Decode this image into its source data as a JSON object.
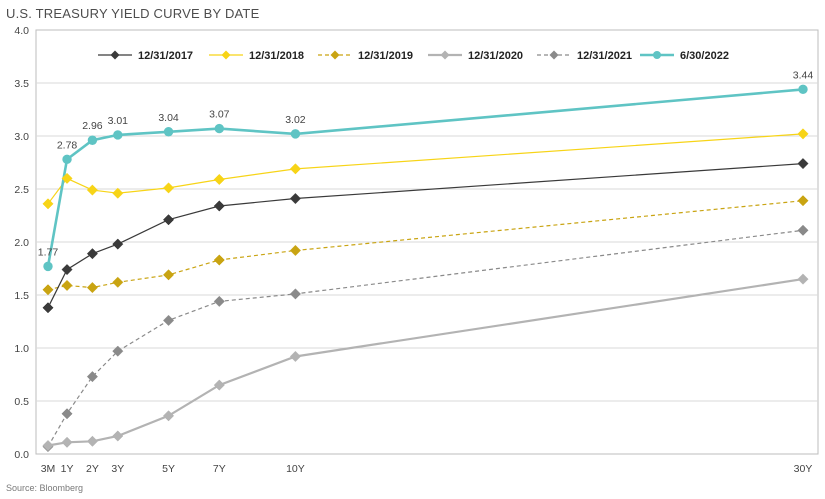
{
  "title": "U.S. TREASURY YIELD CURVE BY DATE",
  "source": "Source: Bloomberg",
  "chart_data": {
    "type": "line",
    "title": "U.S. TREASURY YIELD CURVE BY DATE",
    "xlabel": "",
    "ylabel": "",
    "x": [
      0.25,
      1,
      2,
      3,
      5,
      7,
      10,
      30
    ],
    "x_tick_labels": [
      "3M",
      "1Y",
      "2Y",
      "3Y",
      "5Y",
      "7Y",
      "10Y",
      "30Y"
    ],
    "ylim": [
      0,
      4.0
    ],
    "y_ticks": [
      "0.0",
      "0.5",
      "1.0",
      "1.5",
      "2.0",
      "2.5",
      "3.0",
      "3.5",
      "4.0"
    ],
    "grid": "horizontal",
    "legend_position": "top",
    "series": [
      {
        "name": "12/31/2017",
        "color": "#3a3a3a",
        "dashed": false,
        "marker": "diamond",
        "values": [
          1.38,
          1.74,
          1.89,
          1.98,
          2.21,
          2.34,
          2.41,
          2.74
        ]
      },
      {
        "name": "12/31/2018",
        "color": "#f7d417",
        "dashed": false,
        "marker": "diamond",
        "values": [
          2.36,
          2.6,
          2.49,
          2.46,
          2.51,
          2.59,
          2.69,
          3.02
        ]
      },
      {
        "name": "12/31/2019",
        "color": "#c9a412",
        "dashed": true,
        "marker": "diamond",
        "values": [
          1.55,
          1.59,
          1.57,
          1.62,
          1.69,
          1.83,
          1.92,
          2.39
        ]
      },
      {
        "name": "12/31/2020",
        "color": "#b3b3b3",
        "dashed": false,
        "marker": "diamond",
        "values": [
          0.08,
          0.11,
          0.12,
          0.17,
          0.36,
          0.65,
          0.92,
          1.65
        ]
      },
      {
        "name": "12/31/2021",
        "color": "#8a8a8a",
        "dashed": true,
        "marker": "diamond",
        "values": [
          0.07,
          0.38,
          0.73,
          0.97,
          1.26,
          1.44,
          1.51,
          2.11
        ]
      },
      {
        "name": "6/30/2022",
        "color": "#5fc4c4",
        "dashed": false,
        "marker": "circle",
        "values": [
          1.77,
          2.78,
          2.96,
          3.01,
          3.04,
          3.07,
          3.02,
          3.44
        ],
        "data_labels": [
          "1.77",
          "2.78",
          "2.96",
          "3.01",
          "3.04",
          "3.07",
          "3.02",
          "3.44"
        ]
      }
    ]
  }
}
